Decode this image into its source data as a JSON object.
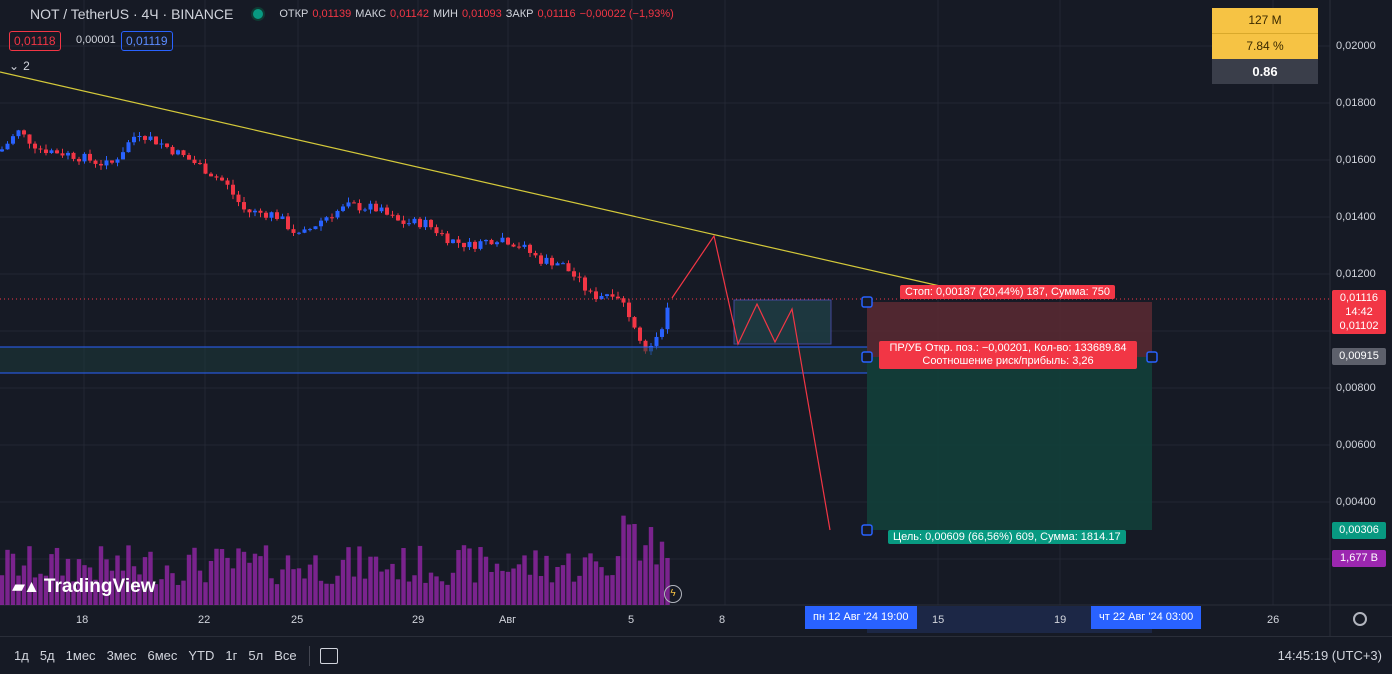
{
  "header": {
    "symbol": "NOT / TetherUS · 4Ч · BINANCE",
    "open_label": "ОТКР",
    "open": "0,01139",
    "high_label": "МАКС",
    "high": "0,01142",
    "low_label": "МИН",
    "low": "0,01093",
    "close_label": "ЗАКР",
    "close": "0,01116",
    "change": "−0,00022 (−1,93%)"
  },
  "order": {
    "sell": "0,01118",
    "spread": "0,00001",
    "buy": "0,01119"
  },
  "indicators_collapsed": "2",
  "stats": {
    "volume": "127 M",
    "percent": "7.84 %",
    "ratio": "0.86"
  },
  "y_axis": {
    "ticks": [
      {
        "label": "0,02000",
        "value": 0.02
      },
      {
        "label": "0,01800",
        "value": 0.018
      },
      {
        "label": "0,01600",
        "value": 0.016
      },
      {
        "label": "0,01400",
        "value": 0.014
      },
      {
        "label": "0,01200",
        "value": 0.012
      },
      {
        "label": "0,00800",
        "value": 0.008
      },
      {
        "label": "0,00600",
        "value": 0.006
      },
      {
        "label": "0,00400",
        "value": 0.004
      }
    ],
    "current_price": "0,01116",
    "countdown": "14:42",
    "current_low": "0,01102",
    "mid_price": "0,00915",
    "target_price": "0,00306",
    "volume_tag": "1,677 B"
  },
  "x_axis": {
    "ticks": [
      "18",
      "22",
      "25",
      "29",
      "Авг",
      "5",
      "8",
      "15",
      "19",
      "26"
    ],
    "selected_start": "пн 12 Авг '24   19:00",
    "selected_end": "чт 22 Авг '24   03:00"
  },
  "position": {
    "stop_label": "Стоп: 0,00187 (20,44%) 187, Сумма: 750",
    "mid_line1": "ПР/УБ Откр. поз.: −0,00201, Кол-во: 133689.84",
    "mid_line2": "Соотношение риск/прибыль: 3,26",
    "target_label": "Цель: 0,00609 (66,56%) 609, Сумма: 1814.17"
  },
  "colors": {
    "up": "#2962ff",
    "down": "#f23645",
    "volume": "#9c27b0",
    "trend": "#d4c93a"
  },
  "timeframes": [
    "1д",
    "5д",
    "1мес",
    "3мес",
    "6мес",
    "YTD",
    "1г",
    "5л",
    "Все"
  ],
  "clock": "14:45:19 (UTC+3)",
  "logo": "TradingView"
}
